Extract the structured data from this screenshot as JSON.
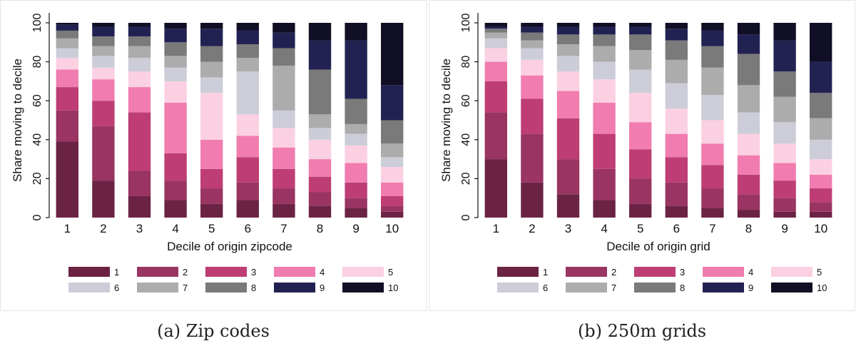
{
  "captions": [
    "(a) Zip codes",
    "(b) 250m grids"
  ],
  "legend_colors": [
    "#6b2344",
    "#9a3462",
    "#bd3d74",
    "#f07cb0",
    "#fbd0e2",
    "#cccdd8",
    "#acacac",
    "#7a7a7a",
    "#222252",
    "#110f26"
  ],
  "chart_data": [
    {
      "type": "bar",
      "stacked": true,
      "title": "",
      "xlabel": "Decile of origin zipcode",
      "ylabel": "Share moving to decile",
      "ylim": [
        0,
        100
      ],
      "yticks": [
        0,
        20,
        40,
        60,
        80,
        100
      ],
      "grid": false,
      "legend_position": "bottom",
      "categories": [
        "1",
        "2",
        "3",
        "4",
        "5",
        "6",
        "7",
        "8",
        "9",
        "10"
      ],
      "series": [
        {
          "name": "1",
          "values": [
            39,
            19,
            11,
            9,
            7,
            9,
            7,
            6,
            5,
            3
          ]
        },
        {
          "name": "2",
          "values": [
            16,
            28,
            13,
            10,
            8,
            9,
            8,
            7,
            5,
            3
          ]
        },
        {
          "name": "3",
          "values": [
            12,
            13,
            30,
            14,
            10,
            13,
            10,
            8,
            8,
            5
          ]
        },
        {
          "name": "4",
          "values": [
            9,
            11,
            13,
            26,
            15,
            11,
            11,
            9,
            10,
            7
          ]
        },
        {
          "name": "5",
          "values": [
            6,
            6,
            8,
            11,
            24,
            11,
            10,
            10,
            9,
            8
          ]
        },
        {
          "name": "6",
          "values": [
            5,
            6,
            7,
            7,
            8,
            22,
            9,
            6,
            6,
            5
          ]
        },
        {
          "name": "7",
          "values": [
            5,
            5,
            6,
            6,
            8,
            7,
            23,
            7,
            5,
            7
          ]
        },
        {
          "name": "8",
          "values": [
            4,
            5,
            5,
            7,
            8,
            7,
            9,
            23,
            13,
            12
          ]
        },
        {
          "name": "9",
          "values": [
            3,
            5,
            5,
            7,
            9,
            7,
            8,
            15,
            30,
            18
          ]
        },
        {
          "name": "10",
          "values": [
            1,
            2,
            2,
            3,
            3,
            4,
            5,
            9,
            9,
            32
          ]
        }
      ]
    },
    {
      "type": "bar",
      "stacked": true,
      "title": "",
      "xlabel": "Decile of origin grid",
      "ylabel": "Share moving to decile",
      "ylim": [
        0,
        100
      ],
      "yticks": [
        0,
        20,
        40,
        60,
        80,
        100
      ],
      "grid": false,
      "legend_position": "bottom",
      "categories": [
        "1",
        "2",
        "3",
        "4",
        "5",
        "6",
        "7",
        "8",
        "9",
        "10"
      ],
      "series": [
        {
          "name": "1",
          "values": [
            30,
            18,
            12,
            9,
            7,
            6,
            5,
            4,
            3,
            3
          ]
        },
        {
          "name": "2",
          "values": [
            24,
            25,
            18,
            16,
            13,
            12,
            10,
            8,
            7,
            5
          ]
        },
        {
          "name": "3",
          "values": [
            16,
            18,
            21,
            18,
            15,
            13,
            12,
            10,
            9,
            7
          ]
        },
        {
          "name": "4",
          "values": [
            10,
            12,
            14,
            16,
            14,
            12,
            11,
            10,
            9,
            7
          ]
        },
        {
          "name": "5",
          "values": [
            7,
            8,
            10,
            12,
            15,
            13,
            12,
            11,
            10,
            8
          ]
        },
        {
          "name": "6",
          "values": [
            5,
            6,
            8,
            9,
            12,
            13,
            13,
            11,
            11,
            10
          ]
        },
        {
          "name": "7",
          "values": [
            3,
            4,
            6,
            8,
            10,
            12,
            14,
            14,
            13,
            11
          ]
        },
        {
          "name": "8",
          "values": [
            2,
            4,
            5,
            6,
            8,
            10,
            11,
            16,
            13,
            13
          ]
        },
        {
          "name": "9",
          "values": [
            1,
            3,
            4,
            4,
            4,
            6,
            8,
            10,
            16,
            16
          ]
        },
        {
          "name": "10",
          "values": [
            2,
            2,
            2,
            2,
            2,
            3,
            4,
            6,
            9,
            20
          ]
        }
      ]
    }
  ]
}
